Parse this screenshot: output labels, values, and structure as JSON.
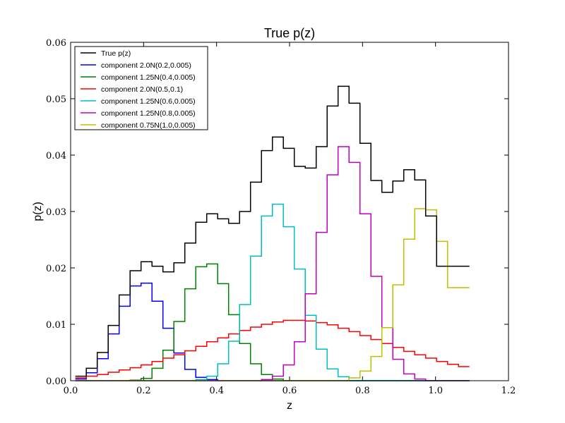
{
  "chart_data": {
    "type": "line",
    "style": "step",
    "title": "True p(z)",
    "xlabel": "z",
    "ylabel": "p(z)",
    "xlim": [
      0.0,
      1.2
    ],
    "ylim": [
      0.0,
      0.06
    ],
    "xticks": [
      "0.0",
      "0.2",
      "0.4",
      "0.6",
      "0.8",
      "1.0",
      "1.2"
    ],
    "yticks": [
      "0.00",
      "0.01",
      "0.02",
      "0.03",
      "0.04",
      "0.05",
      "0.06"
    ],
    "grid": false,
    "legend_position": "top-left",
    "bin_edges": [
      0.013,
      0.043,
      0.073,
      0.103,
      0.133,
      0.163,
      0.193,
      0.223,
      0.253,
      0.283,
      0.313,
      0.343,
      0.373,
      0.403,
      0.433,
      0.463,
      0.493,
      0.523,
      0.553,
      0.583,
      0.613,
      0.643,
      0.673,
      0.703,
      0.733,
      0.763,
      0.793,
      0.823,
      0.853,
      0.883,
      0.913,
      0.943,
      0.973,
      1.003,
      1.033,
      1.063,
      1.093
    ],
    "series": [
      {
        "name": "True p(z)",
        "color": "#000000",
        "values": [
          0.0008,
          0.0022,
          0.005,
          0.0098,
          0.0152,
          0.0195,
          0.0211,
          0.0203,
          0.0193,
          0.0209,
          0.0244,
          0.0281,
          0.0296,
          0.0287,
          0.0279,
          0.03,
          0.0352,
          0.0408,
          0.0432,
          0.0412,
          0.038,
          0.0377,
          0.0415,
          0.0487,
          0.0522,
          0.0492,
          0.0421,
          0.0355,
          0.0334,
          0.0354,
          0.0374,
          0.0356,
          0.0292,
          0.0203,
          0.0203,
          0.0203
        ]
      },
      {
        "name": "component 2.0N(0.2,0.005)",
        "color": "#0000ff",
        "values": [
          0.0003,
          0.0014,
          0.0039,
          0.0083,
          0.0132,
          0.0168,
          0.0173,
          0.0141,
          0.0093,
          0.0049,
          0.002,
          0.0006,
          0.0002,
          0.0,
          0.0,
          0.0,
          0.0,
          0.0,
          0.0,
          0.0,
          0.0,
          0.0,
          0.0,
          0.0,
          0.0,
          0.0,
          0.0,
          0.0,
          0.0,
          0.0,
          0.0,
          0.0,
          0.0,
          0.0,
          0.0,
          0.0
        ]
      },
      {
        "name": "component 1.25N(0.4,0.005)",
        "color": "#008000",
        "values": [
          0.0,
          0.0,
          0.0,
          0.0,
          0.0,
          0.0001,
          0.0004,
          0.0022,
          0.0054,
          0.0105,
          0.0163,
          0.0202,
          0.0207,
          0.0172,
          0.0117,
          0.0066,
          0.003,
          0.0011,
          0.0003,
          0.0,
          0.0,
          0.0,
          0.0,
          0.0,
          0.0,
          0.0,
          0.0,
          0.0,
          0.0,
          0.0,
          0.0,
          0.0,
          0.0,
          0.0,
          0.0,
          0.0
        ]
      },
      {
        "name": "component 2.0N(0.5,0.1)",
        "color": "#ff0000",
        "values": [
          0.0005,
          0.0008,
          0.0011,
          0.0015,
          0.0019,
          0.0023,
          0.0028,
          0.0034,
          0.004,
          0.0046,
          0.0053,
          0.0061,
          0.0069,
          0.0076,
          0.0083,
          0.0089,
          0.0095,
          0.01,
          0.0104,
          0.0107,
          0.0107,
          0.0106,
          0.0103,
          0.0099,
          0.0093,
          0.0087,
          0.008,
          0.0073,
          0.0066,
          0.0059,
          0.0052,
          0.0046,
          0.004,
          0.0034,
          0.0029,
          0.0025
        ]
      },
      {
        "name": "component 1.25N(0.6,0.005)",
        "color": "#00bfbf",
        "values": [
          0.0,
          0.0,
          0.0,
          0.0,
          0.0,
          0.0,
          0.0,
          0.0,
          0.0,
          0.0,
          0.0,
          0.0002,
          0.0008,
          0.003,
          0.007,
          0.0135,
          0.0221,
          0.0292,
          0.0313,
          0.0273,
          0.0198,
          0.0116,
          0.0056,
          0.0021,
          0.0007,
          0.0,
          0.0,
          0.0,
          0.0,
          0.0,
          0.0,
          0.0,
          0.0,
          0.0,
          0.0,
          0.0
        ]
      },
      {
        "name": "component 1.25N(0.8,0.005)",
        "color": "#bf00bf",
        "values": [
          0.0,
          0.0,
          0.0,
          0.0,
          0.0,
          0.0,
          0.0,
          0.0,
          0.0,
          0.0,
          0.0,
          0.0,
          0.0,
          0.0,
          0.0,
          0.0,
          0.0,
          0.0002,
          0.0008,
          0.0028,
          0.0069,
          0.0154,
          0.0263,
          0.0365,
          0.0415,
          0.0387,
          0.0296,
          0.0185,
          0.0094,
          0.0038,
          0.0012,
          0.0003,
          0.0,
          0.0,
          0.0,
          0.0
        ]
      },
      {
        "name": "component 0.75N(1.0,0.005)",
        "color": "#bfbf00",
        "values": [
          0.0,
          0.0,
          0.0,
          0.0,
          0.0,
          0.0,
          0.0,
          0.0,
          0.0,
          0.0,
          0.0,
          0.0,
          0.0,
          0.0,
          0.0,
          0.0,
          0.0,
          0.0,
          0.0,
          0.0,
          0.0,
          0.0,
          0.0,
          0.0,
          0.0,
          0.0005,
          0.0017,
          0.0043,
          0.0094,
          0.017,
          0.0251,
          0.0305,
          0.0303,
          0.0247,
          0.0165,
          0.0165
        ]
      }
    ]
  }
}
